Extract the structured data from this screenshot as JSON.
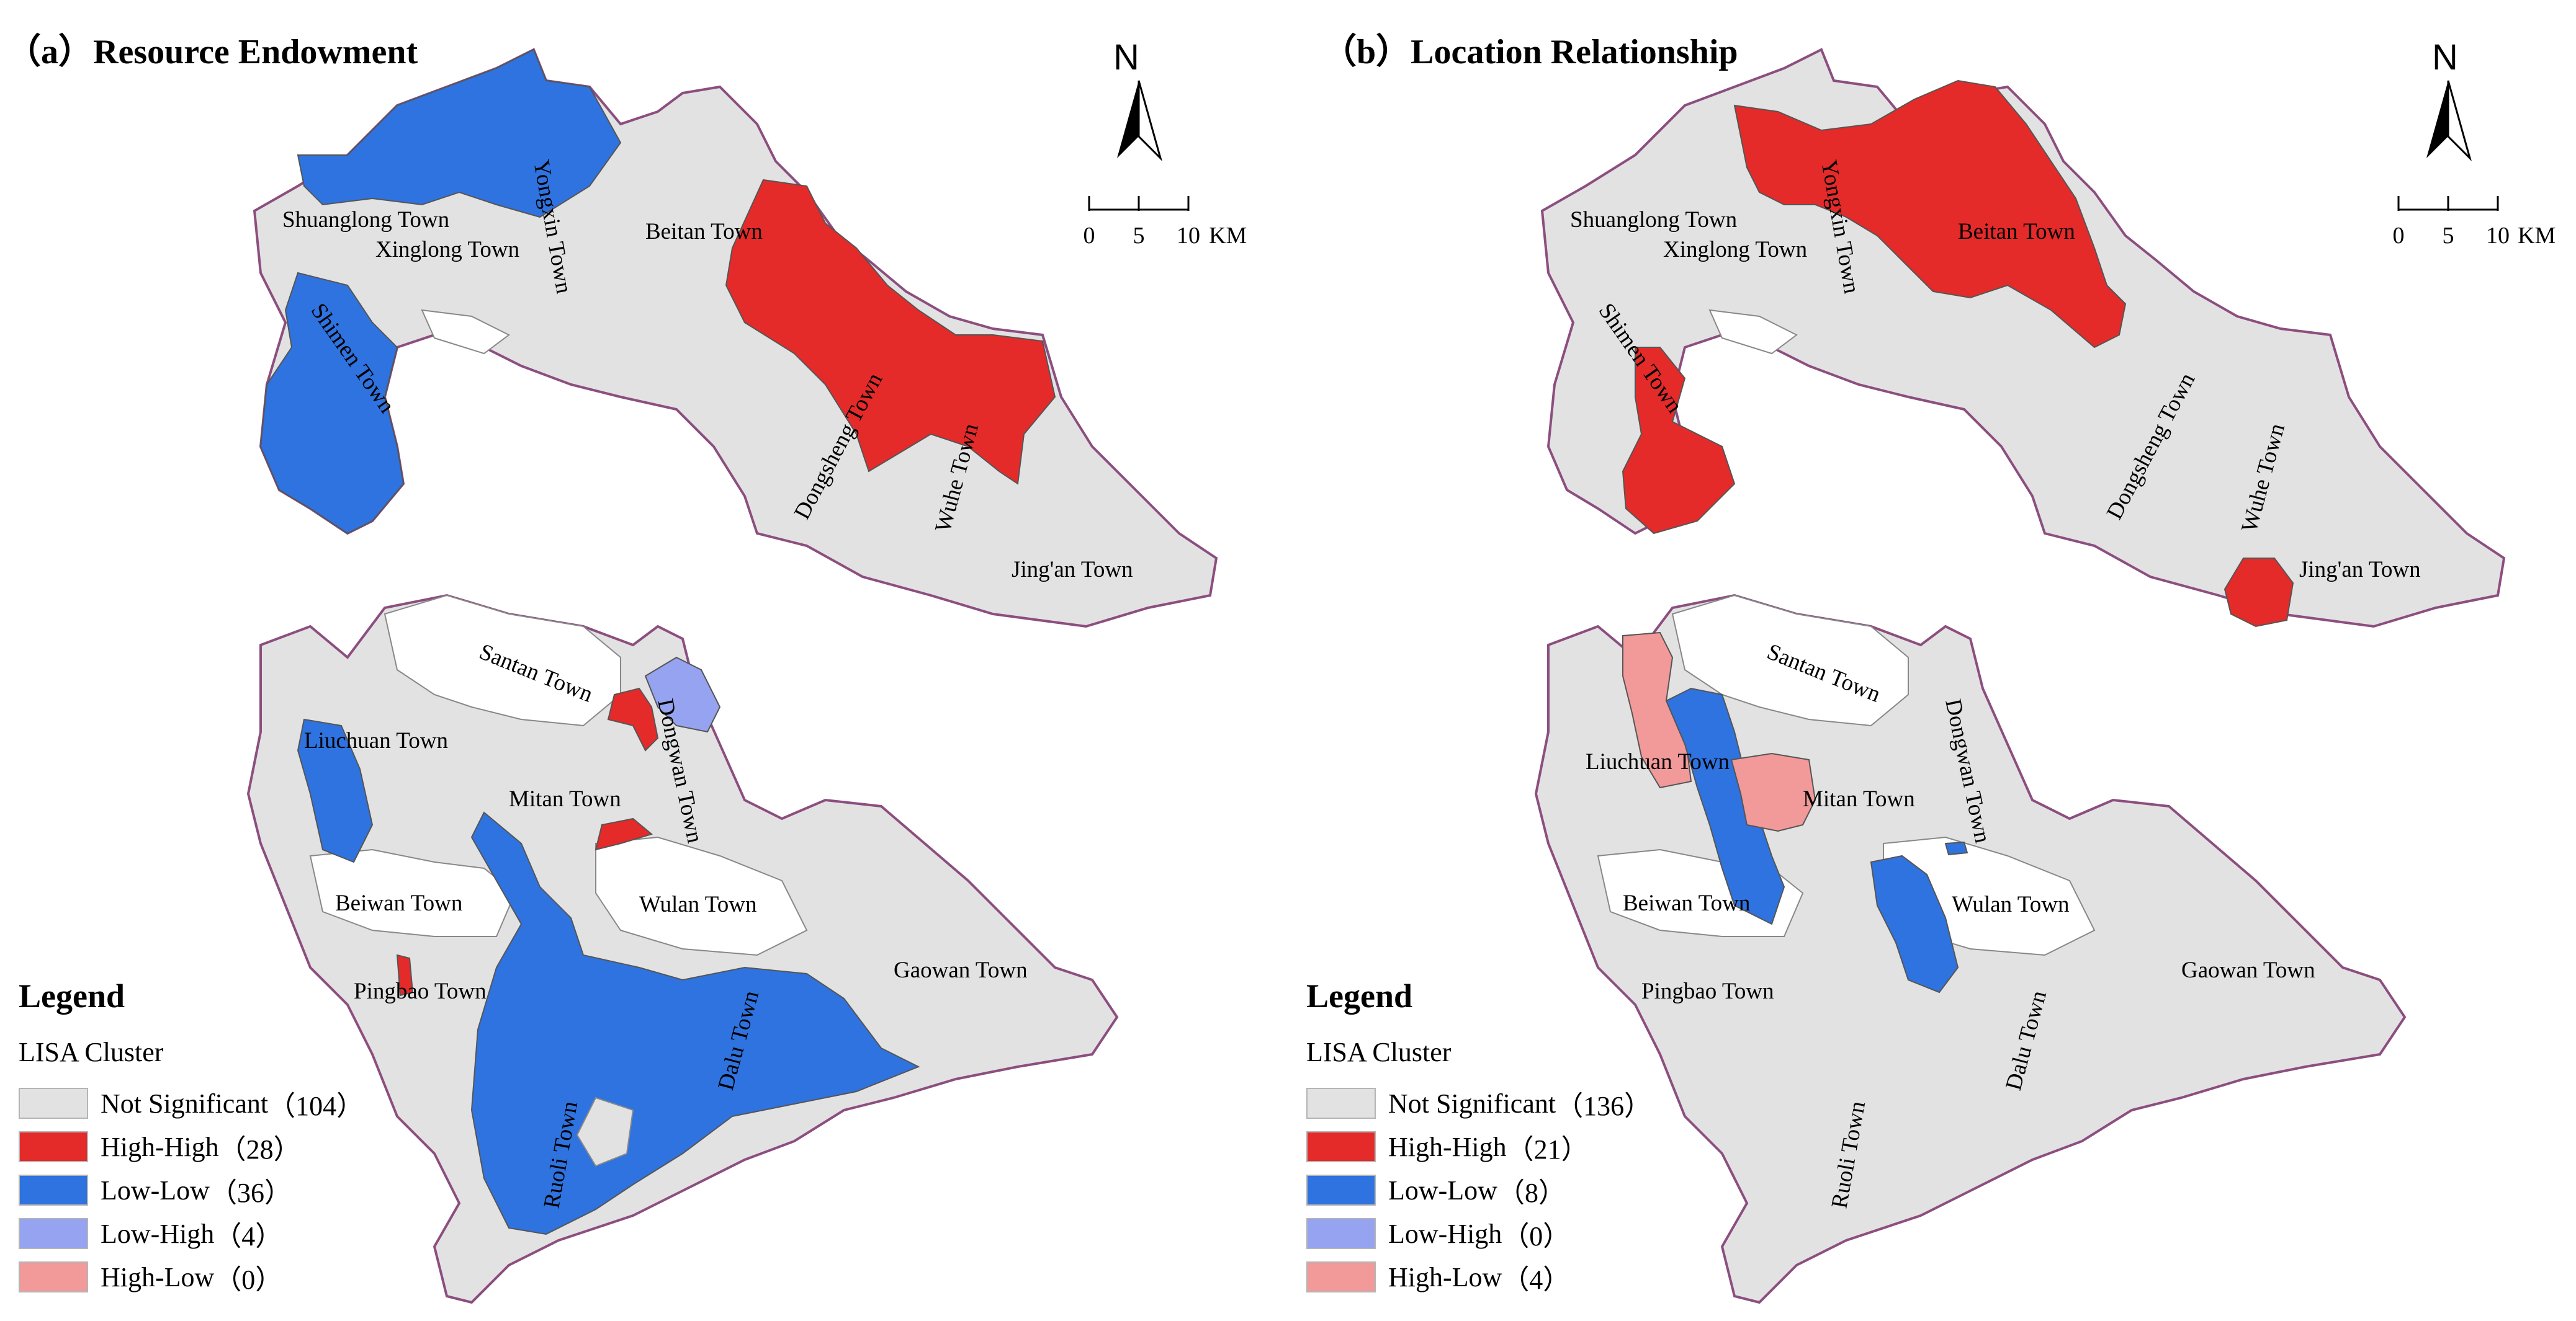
{
  "panels": [
    {
      "letter": "（a）",
      "title": "Resource Endowment",
      "legend_counts": [
        "（104）",
        "（28）",
        "（36）",
        "（4）",
        "（0）"
      ],
      "towns": [
        "Shuanglong Town",
        "Xinglong Town",
        "Yongxin Town",
        "Beitan Town",
        "Shimen Town",
        "Dongsheng Town",
        "Wuhe Town",
        "Jing'an Town",
        "Santan Town",
        "Dongwan Town",
        "Liuchuan Town",
        "Mitan Town",
        "Beiwan Town",
        "Wulan Town",
        "Gaowan Town",
        "Pingbao Town",
        "Ruoli Town",
        "Dalu Town"
      ]
    },
    {
      "letter": "（b）",
      "title": "Location Relationship",
      "legend_counts": [
        "（136）",
        "（21）",
        "（8）",
        "（0）",
        "（4）"
      ],
      "towns": [
        "Shuanglong Town",
        "Xinglong Town",
        "Yongxin Town",
        "Beitan Town",
        "Shimen Town",
        "Dongsheng Town",
        "Wuhe Town",
        "Jing'an Town",
        "Santan Town",
        "Dongwan Town",
        "Liuchuan Town",
        "Mitan Town",
        "Beiwan Town",
        "Wulan Town",
        "Gaowan Town",
        "Pingbao Town",
        "Ruoli Town",
        "Dalu Town"
      ]
    }
  ],
  "north_label": "N",
  "scale": {
    "ticks": [
      "0",
      "5",
      "10"
    ],
    "unit": "KM"
  },
  "legend": {
    "title": "Legend",
    "subtitle": "LISA Cluster",
    "categories": [
      "Not Significant",
      "High-High",
      "Low-Low",
      "Low-High",
      "High-Low"
    ]
  },
  "colors": {
    "not_significant": "#e3e2e2",
    "high_high": "#e52a2a",
    "low_low": "#2e73e0",
    "low_high": "#95a3f0",
    "high_low": "#f2999a",
    "boundary": "#8c4e7f",
    "inner_border": "#a0a0a0",
    "blank": "#ffffff"
  }
}
